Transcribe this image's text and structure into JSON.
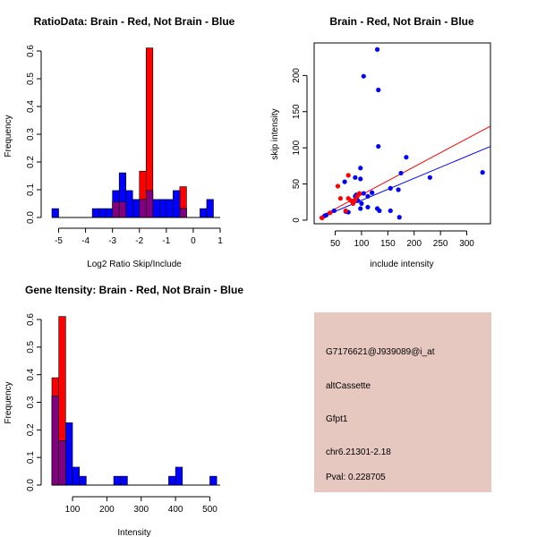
{
  "colors": {
    "red": "#ff0000",
    "blue": "#0000ff",
    "overlap": "#800080",
    "panel_bg": "#e6c8c0",
    "pval": "#a00000"
  },
  "chart_data": [
    {
      "type": "histogram",
      "title": "RatioData: Brain - Red, Not Brain - Blue",
      "xlabel": "Log2 Ratio Skip/Include",
      "ylabel": "Frequency",
      "xlim": [
        -5.25,
        1.0
      ],
      "ylim": [
        0,
        0.6
      ],
      "xticks": [
        -5,
        -4,
        -3,
        -2,
        -1,
        0,
        1
      ],
      "yticks": [
        0.0,
        0.1,
        0.2,
        0.3,
        0.4,
        0.5,
        0.6
      ],
      "series": [
        {
          "name": "Not Brain",
          "color": "blue",
          "bins": [
            {
              "x0": -5.25,
              "x1": -5.0,
              "y": 0.032
            },
            {
              "x0": -3.75,
              "x1": -3.5,
              "y": 0.032
            },
            {
              "x0": -3.5,
              "x1": -3.25,
              "y": 0.032
            },
            {
              "x0": -3.25,
              "x1": -3.0,
              "y": 0.032
            },
            {
              "x0": -3.0,
              "x1": -2.75,
              "y": 0.097
            },
            {
              "x0": -2.75,
              "x1": -2.5,
              "y": 0.161
            },
            {
              "x0": -2.5,
              "x1": -2.25,
              "y": 0.097
            },
            {
              "x0": -2.25,
              "x1": -2.0,
              "y": 0.065
            },
            {
              "x0": -2.0,
              "x1": -1.75,
              "y": 0.065
            },
            {
              "x0": -1.75,
              "x1": -1.5,
              "y": 0.097
            },
            {
              "x0": -1.5,
              "x1": -1.25,
              "y": 0.065
            },
            {
              "x0": -1.25,
              "x1": -1.0,
              "y": 0.065
            },
            {
              "x0": -1.0,
              "x1": -0.75,
              "y": 0.065
            },
            {
              "x0": -0.75,
              "x1": -0.5,
              "y": 0.097
            },
            {
              "x0": -0.5,
              "x1": -0.25,
              "y": 0.032
            },
            {
              "x0": 0.25,
              "x1": 0.5,
              "y": 0.032
            },
            {
              "x0": 0.5,
              "x1": 0.75,
              "y": 0.065
            }
          ]
        },
        {
          "name": "Brain",
          "color": "red",
          "bins": [
            {
              "x0": -3.0,
              "x1": -2.75,
              "y": 0.056
            },
            {
              "x0": -2.75,
              "x1": -2.5,
              "y": 0.056
            },
            {
              "x0": -2.0,
              "x1": -1.75,
              "y": 0.167
            },
            {
              "x0": -1.75,
              "x1": -1.5,
              "y": 0.611
            },
            {
              "x0": -0.5,
              "x1": -0.25,
              "y": 0.111
            }
          ]
        }
      ]
    },
    {
      "type": "scatter",
      "title": "Brain - Red, Not Brain - Blue",
      "xlabel": "include intensity",
      "ylabel": "skip intensity",
      "xlim": [
        10,
        345
      ],
      "ylim": [
        -5,
        245
      ],
      "xticks": [
        50,
        100,
        150,
        200,
        250,
        300
      ],
      "yticks": [
        0,
        50,
        100,
        150,
        200
      ],
      "series": [
        {
          "name": "Not Brain",
          "color": "blue",
          "points": [
            [
              130,
              236
            ],
            [
              104,
              199
            ],
            [
              132,
              180
            ],
            [
              132,
              102
            ],
            [
              185,
              87
            ],
            [
              98,
              72
            ],
            [
              175,
              65
            ],
            [
              88,
              59
            ],
            [
              68,
              53
            ],
            [
              98,
              57
            ],
            [
              230,
              59
            ],
            [
              330,
              66
            ],
            [
              120,
              38
            ],
            [
              112,
              33
            ],
            [
              88,
              33
            ],
            [
              104,
              37
            ],
            [
              93,
              27
            ],
            [
              90,
              35
            ],
            [
              155,
              44
            ],
            [
              170,
              42
            ],
            [
              100,
              23
            ],
            [
              112,
              18
            ],
            [
              98,
              16
            ],
            [
              130,
              16
            ],
            [
              134,
              13
            ],
            [
              155,
              13
            ],
            [
              70,
              12
            ],
            [
              75,
              11
            ],
            [
              48,
              13
            ],
            [
              30,
              6
            ],
            [
              33,
              7
            ],
            [
              172,
              4
            ]
          ]
        },
        {
          "name": "Brain",
          "color": "red",
          "points": [
            [
              75,
              62
            ],
            [
              55,
              47
            ],
            [
              60,
              30
            ],
            [
              70,
              13
            ],
            [
              80,
              27
            ],
            [
              84,
              23
            ],
            [
              88,
              28
            ],
            [
              92,
              33
            ],
            [
              96,
              37
            ],
            [
              75,
              30
            ],
            [
              40,
              10
            ],
            [
              25,
              3
            ]
          ]
        }
      ],
      "fit_lines": [
        {
          "color": "red",
          "from": [
            20,
            4
          ],
          "to": [
            345,
            130
          ]
        },
        {
          "color": "blue",
          "from": [
            20,
            3
          ],
          "to": [
            345,
            102
          ]
        }
      ]
    },
    {
      "type": "histogram",
      "title": "Gene Itensity: Brain - Red, Not Brain - Blue",
      "xlabel": "Intensity",
      "ylabel": "Frequency",
      "xlim": [
        40,
        530
      ],
      "ylim": [
        0,
        0.6
      ],
      "xticks": [
        100,
        200,
        300,
        400,
        500
      ],
      "yticks": [
        0.0,
        0.1,
        0.2,
        0.3,
        0.4,
        0.5,
        0.6
      ],
      "series": [
        {
          "name": "Not Brain",
          "color": "blue",
          "bins": [
            {
              "x0": 40,
              "x1": 60,
              "y": 0.323
            },
            {
              "x0": 60,
              "x1": 80,
              "y": 0.161
            },
            {
              "x0": 80,
              "x1": 100,
              "y": 0.226
            },
            {
              "x0": 100,
              "x1": 120,
              "y": 0.065
            },
            {
              "x0": 120,
              "x1": 140,
              "y": 0.032
            },
            {
              "x0": 220,
              "x1": 240,
              "y": 0.032
            },
            {
              "x0": 240,
              "x1": 260,
              "y": 0.032
            },
            {
              "x0": 380,
              "x1": 400,
              "y": 0.032
            },
            {
              "x0": 400,
              "x1": 420,
              "y": 0.065
            },
            {
              "x0": 500,
              "x1": 520,
              "y": 0.032
            }
          ]
        },
        {
          "name": "Brain",
          "color": "red",
          "bins": [
            {
              "x0": 40,
              "x1": 60,
              "y": 0.389
            },
            {
              "x0": 60,
              "x1": 80,
              "y": 0.611
            }
          ]
        }
      ]
    }
  ],
  "info_panel": {
    "probe_id": "G7176621@J939089@i_at",
    "event_type": "altCassette",
    "gene": "Gfpt1",
    "location": "chr6.21301-2.18",
    "pval": "Pval: 0.228705"
  }
}
